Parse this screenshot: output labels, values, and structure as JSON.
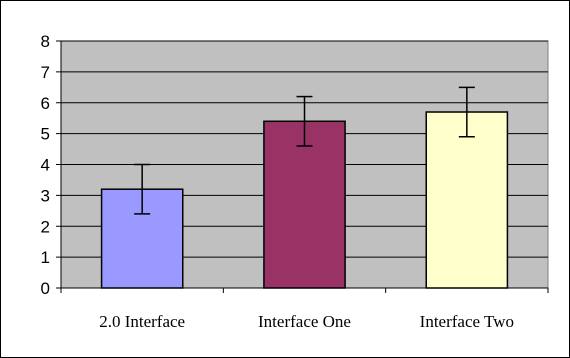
{
  "chart_data": {
    "type": "bar",
    "categories": [
      "2.0 Interface",
      "Interface One",
      "Interface Two"
    ],
    "values": [
      3.2,
      5.4,
      5.7
    ],
    "error": [
      0.8,
      0.8,
      0.8
    ],
    "colors": [
      "#9999ff",
      "#993366",
      "#ffffcc"
    ],
    "ylim": [
      0,
      8
    ],
    "yticks": [
      "0",
      "1",
      "2",
      "3",
      "4",
      "5",
      "6",
      "7",
      "8"
    ],
    "grid": true,
    "plot_background": "#c0c0c0",
    "title": "",
    "xlabel": "",
    "ylabel": ""
  }
}
